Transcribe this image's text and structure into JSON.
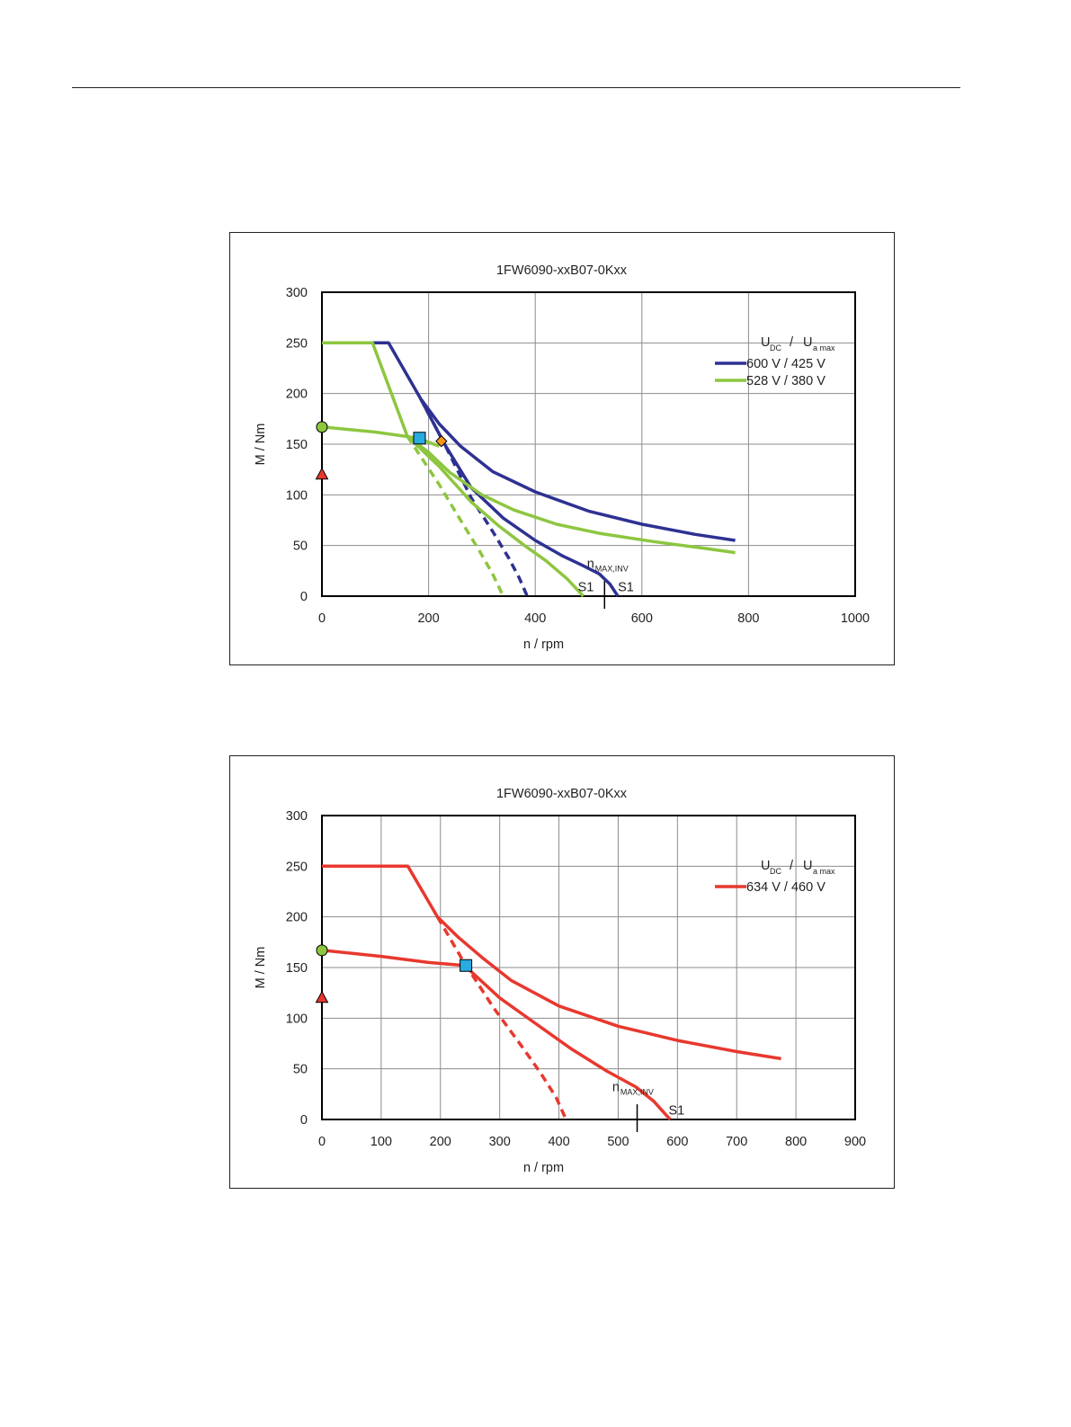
{
  "chart_data": [
    {
      "type": "line",
      "title": "1FW6090-xxB07-0Kxx",
      "xlabel": "n / rpm",
      "ylabel": "M / Nm",
      "xlim": [
        0,
        1000
      ],
      "ylim": [
        0,
        300
      ],
      "xticks": [
        0,
        200,
        400,
        600,
        800,
        1000
      ],
      "yticks": [
        0,
        50,
        100,
        150,
        200,
        250,
        300
      ],
      "grid": true,
      "legend_position": "top-right",
      "legend_header": {
        "u": "U",
        "dc": "DC",
        "sep": "/",
        "u2": "U",
        "amax": "a max"
      },
      "series": [
        {
          "name": "600 V / 425 V",
          "color": "#2e3192",
          "style": "solid",
          "x": [
            0,
            125,
            185,
            220,
            260,
            320,
            400,
            500,
            600,
            700,
            775
          ],
          "y": [
            250,
            250,
            195,
            170,
            148,
            123,
            103,
            84,
            71,
            61,
            55
          ]
        },
        {
          "name": "",
          "color": "#2e3192",
          "style": "solid",
          "x": [
            185,
            230,
            280,
            340,
            400,
            450,
            490,
            520,
            540,
            555
          ],
          "y": [
            195,
            150,
            107,
            77,
            55,
            40,
            30,
            22,
            12,
            0
          ]
        },
        {
          "name": "",
          "color": "#2e3192",
          "style": "dashed",
          "x": [
            185,
            230,
            280,
            320,
            350,
            370,
            385
          ],
          "y": [
            195,
            150,
            97,
            64,
            38,
            18,
            0
          ]
        },
        {
          "name": "528 V / 380 V",
          "color": "#8dc63f",
          "style": "solid",
          "x": [
            0,
            95,
            160,
            200,
            240,
            300,
            360,
            440,
            520,
            620,
            720,
            775
          ],
          "y": [
            250,
            250,
            158,
            142,
            122,
            100,
            85,
            71,
            62,
            54,
            47,
            43
          ]
        },
        {
          "name": "",
          "color": "#8dc63f",
          "style": "solid",
          "x": [
            0,
            100,
            180,
            220
          ],
          "y": [
            167,
            162,
            156,
            148
          ]
        },
        {
          "name": "",
          "color": "#8dc63f",
          "style": "solid",
          "x": [
            160,
            220,
            280,
            330,
            380,
            420,
            460,
            490
          ],
          "y": [
            158,
            128,
            93,
            70,
            50,
            35,
            17,
            0
          ]
        },
        {
          "name": "",
          "color": "#8dc63f",
          "style": "dashed",
          "x": [
            160,
            220,
            260,
            295,
            320,
            340
          ],
          "y": [
            158,
            110,
            75,
            45,
            22,
            0
          ]
        }
      ],
      "markers": [
        {
          "shape": "circle",
          "color": "#8dc63f",
          "x": 0,
          "y": 167
        },
        {
          "shape": "triangle",
          "color": "#e8382e",
          "x": 0,
          "y": 120
        },
        {
          "shape": "square",
          "color": "#29abe2",
          "x": 183,
          "y": 156
        },
        {
          "shape": "diamond",
          "color": "#f7941d",
          "x": 224,
          "y": 153
        }
      ],
      "annotations": [
        {
          "text": "n",
          "sub": "MAX,INV",
          "x": 497,
          "y": 28
        },
        {
          "text": "S1",
          "x": 480,
          "y": 5
        },
        {
          "text": "S1",
          "x": 555,
          "y": 5
        }
      ],
      "vline": {
        "x": 530,
        "y_top": 15
      }
    },
    {
      "type": "line",
      "title": "1FW6090-xxB07-0Kxx",
      "xlabel": "n / rpm",
      "ylabel": "M / Nm",
      "xlim": [
        0,
        900
      ],
      "ylim": [
        0,
        300
      ],
      "xticks": [
        0,
        100,
        200,
        300,
        400,
        500,
        600,
        700,
        800,
        900
      ],
      "yticks": [
        0,
        50,
        100,
        150,
        200,
        250,
        300
      ],
      "grid": true,
      "legend_position": "top-right",
      "legend_header": {
        "u": "U",
        "dc": "DC",
        "sep": "/",
        "u2": "U",
        "amax": "a max"
      },
      "series": [
        {
          "name": "634 V / 460 V",
          "color": "#e8382e",
          "style": "solid",
          "x": [
            0,
            145,
            195,
            230,
            270,
            320,
            400,
            500,
            600,
            700,
            775
          ],
          "y": [
            250,
            250,
            200,
            180,
            160,
            137,
            112,
            92,
            78,
            67,
            60
          ]
        },
        {
          "name": "",
          "color": "#e8382e",
          "style": "solid",
          "x": [
            0,
            100,
            180,
            240,
            250
          ],
          "y": [
            167,
            161,
            155,
            152,
            147
          ]
        },
        {
          "name": "",
          "color": "#e8382e",
          "style": "solid",
          "x": [
            250,
            300,
            360,
            420,
            480,
            530,
            560,
            580,
            588
          ],
          "y": [
            147,
            120,
            95,
            70,
            48,
            32,
            18,
            5,
            0
          ]
        },
        {
          "name": "",
          "color": "#e8382e",
          "style": "dashed",
          "x": [
            195,
            240,
            290,
            340,
            370,
            395,
            412
          ],
          "y": [
            200,
            155,
            110,
            70,
            45,
            22,
            0
          ]
        }
      ],
      "markers": [
        {
          "shape": "circle",
          "color": "#8dc63f",
          "x": 0,
          "y": 167
        },
        {
          "shape": "triangle",
          "color": "#e8382e",
          "x": 0,
          "y": 120
        },
        {
          "shape": "square",
          "color": "#29abe2",
          "x": 243,
          "y": 152
        }
      ],
      "annotations": [
        {
          "text": "n",
          "sub": "MAX,INV",
          "x": 490,
          "y": 28
        },
        {
          "text": "S1",
          "x": 585,
          "y": 5
        }
      ],
      "vline": {
        "x": 532,
        "y_top": 15
      }
    }
  ]
}
